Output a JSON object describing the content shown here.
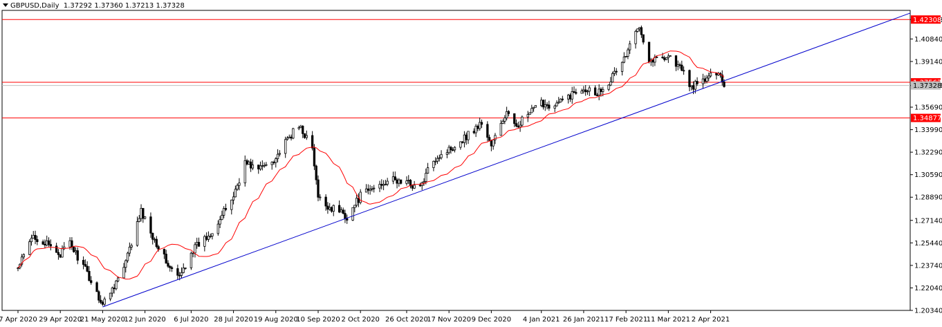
{
  "header": {
    "symbol": "GBPUSD,Daily",
    "ohlc": "1.37292 1.37360 1.37213 1.37328"
  },
  "chart_data": {
    "type": "candlestick",
    "symbol": "GBPUSD",
    "timeframe": "Daily",
    "ylim": [
      1.2034,
      1.43
    ],
    "y_ticks": [
      "1.42308",
      "1.40840",
      "1.39140",
      "1.37328",
      "1.35690",
      "1.33990",
      "1.32290",
      "1.30590",
      "1.28890",
      "1.27140",
      "1.25440",
      "1.23740",
      "1.22040",
      "1.20340"
    ],
    "x_ticks": [
      "7 Apr 2020",
      "29 Apr 2020",
      "21 May 2020",
      "12 Jun 2020",
      "6 Jul 2020",
      "28 Jul 2020",
      "19 Aug 2020",
      "10 Sep 2020",
      "2 Oct 2020",
      "26 Oct 2020",
      "17 Nov 2020",
      "9 Dec 2020",
      "4 Jan 2021",
      "26 Jan 2021",
      "17 Feb 2021",
      "11 Mar 2021",
      "2 Apr 2021"
    ],
    "price_levels": [
      {
        "label": "1.42308",
        "value": 1.42308,
        "color": "#ff0000"
      },
      {
        "label": "1.37567",
        "value": 1.37567,
        "color": "#ff0000"
      },
      {
        "label": "1.34877",
        "value": 1.34877,
        "color": "#ff0000"
      }
    ],
    "current_price": {
      "label": "1.37328",
      "value": 1.37328
    },
    "trendline": {
      "from": [
        "21 May 2020",
        1.206
      ],
      "to": [
        "2 Apr 2021",
        1.3731
      ],
      "color": "#0000cc"
    },
    "moving_average": {
      "color": "#ff0000"
    },
    "anchors": [
      [
        "7 Apr 2020",
        1.235
      ],
      [
        "15 Apr 2020",
        1.26
      ],
      [
        "29 Apr 2020",
        1.246
      ],
      [
        "4 May 2020",
        1.254
      ],
      [
        "12 May 2020",
        1.234
      ],
      [
        "21 May 2020",
        1.208
      ],
      [
        "1 Jun 2020",
        1.235
      ],
      [
        "10 Jun 2020",
        1.278
      ],
      [
        "16 Jun 2020",
        1.26
      ],
      [
        "25 Jun 2020",
        1.235
      ],
      [
        "30 Jun 2020",
        1.228
      ],
      [
        "6 Jul 2020",
        1.248
      ],
      [
        "15 Jul 2020",
        1.26
      ],
      [
        "22 Jul 2020",
        1.275
      ],
      [
        "28 Jul 2020",
        1.29
      ],
      [
        "3 Aug 2020",
        1.315
      ],
      [
        "10 Aug 2020",
        1.31
      ],
      [
        "19 Aug 2020",
        1.319
      ],
      [
        "28 Aug 2020",
        1.338
      ],
      [
        "1 Sep 2020",
        1.342
      ],
      [
        "7 Sep 2020",
        1.325
      ],
      [
        "10 Sep 2020",
        1.288
      ],
      [
        "15 Sep 2020",
        1.282
      ],
      [
        "22 Sep 2020",
        1.278
      ],
      [
        "25 Sep 2020",
        1.274
      ],
      [
        "2 Oct 2020",
        1.29
      ],
      [
        "9 Oct 2020",
        1.296
      ],
      [
        "16 Oct 2020",
        1.302
      ],
      [
        "26 Oct 2020",
        1.3
      ],
      [
        "2 Nov 2020",
        1.296
      ],
      [
        "9 Nov 2020",
        1.318
      ],
      [
        "17 Nov 2020",
        1.325
      ],
      [
        "25 Nov 2020",
        1.334
      ],
      [
        "4 Dec 2020",
        1.345
      ],
      [
        "9 Dec 2020",
        1.328
      ],
      [
        "17 Dec 2020",
        1.353
      ],
      [
        "21 Dec 2020",
        1.342
      ],
      [
        "4 Jan 2021",
        1.36
      ],
      [
        "11 Jan 2021",
        1.358
      ],
      [
        "18 Jan 2021",
        1.365
      ],
      [
        "26 Jan 2021",
        1.372
      ],
      [
        "2 Feb 2021",
        1.368
      ],
      [
        "9 Feb 2021",
        1.378
      ],
      [
        "17 Feb 2021",
        1.396
      ],
      [
        "24 Feb 2021",
        1.42
      ],
      [
        "1 Mar 2021",
        1.392
      ],
      [
        "11 Mar 2021",
        1.396
      ],
      [
        "18 Mar 2021",
        1.385
      ],
      [
        "23 Mar 2021",
        1.372
      ],
      [
        "2 Apr 2021",
        1.38
      ],
      [
        "6 Apr 2021",
        1.385
      ],
      [
        "9 Apr 2021",
        1.3733
      ]
    ]
  }
}
